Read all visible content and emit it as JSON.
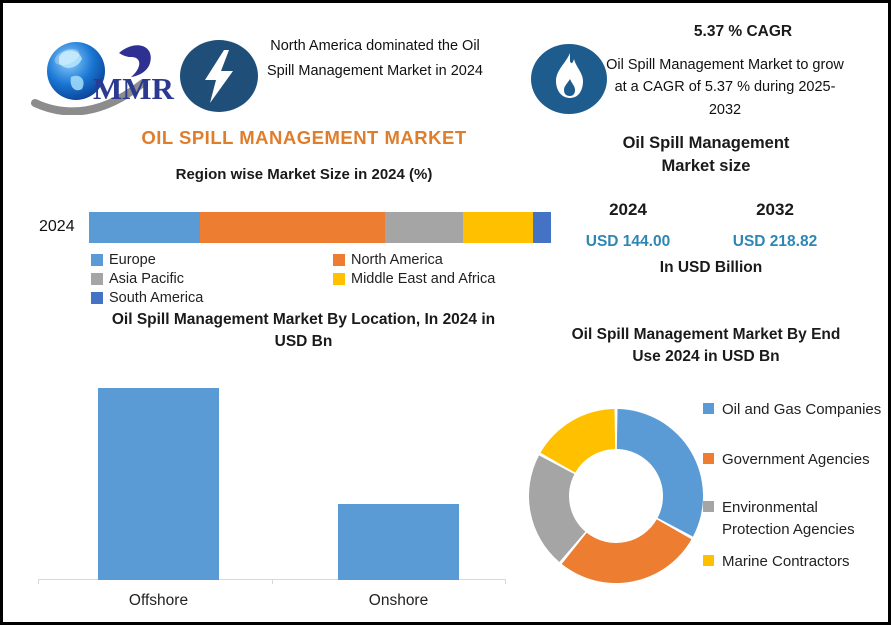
{
  "colors": {
    "title_orange": "#E07D2B",
    "value_teal": "#2E86B5",
    "badge_navy": "#1F4E79",
    "badge_navy_light": "#1F5C8E",
    "bar_blue": "#5B9BD5"
  },
  "header": {
    "logo_text": "MMR",
    "headline": "North America dominated the Oil Spill Management Market in 2024",
    "cagr_heading": "5.37 % CAGR",
    "cagr_text": "Oil Spill Management Market to grow at a CAGR of 5.37 % during 2025-2032"
  },
  "left": {
    "title": "OIL SPILL MANAGEMENT MARKET",
    "region_chart": {
      "subtitle": "Region wise Market Size in 2024 (%)",
      "year_label": "2024",
      "segments": [
        {
          "label": "Europe",
          "color": "#5B9BD5",
          "pct": 24
        },
        {
          "label": "North America",
          "color": "#ED7D31",
          "pct": 40
        },
        {
          "label": "Asia Pacific",
          "color": "#A5A5A5",
          "pct": 17
        },
        {
          "label": "Middle East and Africa",
          "color": "#FFC000",
          "pct": 15
        },
        {
          "label": "South America",
          "color": "#4472C4",
          "pct": 4
        }
      ]
    },
    "location_chart": {
      "title": "Oil Spill Management Market By  Location, In 2024 in USD Bn",
      "categories": [
        "Offshore",
        "Onshore"
      ],
      "values": [
        103,
        41
      ]
    }
  },
  "right": {
    "market_size": {
      "title": "Oil Spill Management Market size",
      "years": [
        "2024",
        "2032"
      ],
      "values": [
        "USD 144.00",
        "USD 218.82"
      ],
      "unit": "In USD Billion"
    },
    "end_use_chart": {
      "title": "Oil Spill Management Market By End Use 2024 in USD Bn",
      "slices": [
        {
          "label": "Oil and Gas Companies",
          "color": "#5B9BD5",
          "pct": 33
        },
        {
          "label": "Government Agencies",
          "color": "#ED7D31",
          "pct": 28
        },
        {
          "label": "Environmental Protection Agencies",
          "color": "#A5A5A5",
          "pct": 22
        },
        {
          "label": "Marine Contractors",
          "color": "#FFC000",
          "pct": 17
        }
      ]
    }
  },
  "chart_data": [
    {
      "type": "bar",
      "subtype": "stacked-horizontal",
      "title": "Region wise Market Size in 2024 (%)",
      "categories": [
        "2024"
      ],
      "series": [
        {
          "name": "Europe",
          "values": [
            24
          ]
        },
        {
          "name": "North America",
          "values": [
            40
          ]
        },
        {
          "name": "Asia Pacific",
          "values": [
            17
          ]
        },
        {
          "name": "Middle East and Africa",
          "values": [
            15
          ]
        },
        {
          "name": "South America",
          "values": [
            4
          ]
        }
      ],
      "unit": "%",
      "legend_position": "bottom",
      "grid": false
    },
    {
      "type": "bar",
      "title": "Oil Spill Management Market By  Location, In 2024 in USD Bn",
      "categories": [
        "Offshore",
        "Onshore"
      ],
      "values": [
        103,
        41
      ],
      "xlabel": "",
      "ylabel": "USD Bn",
      "ylim": [
        0,
        110
      ],
      "grid": false
    },
    {
      "type": "pie",
      "subtype": "donut",
      "title": "Oil Spill Management Market By End Use 2024 in USD Bn",
      "labels": [
        "Oil and Gas Companies",
        "Government Agencies",
        "Environmental Protection Agencies",
        "Marine Contractors"
      ],
      "values": [
        33,
        28,
        22,
        17
      ],
      "unit": "% share",
      "legend_position": "right"
    }
  ]
}
